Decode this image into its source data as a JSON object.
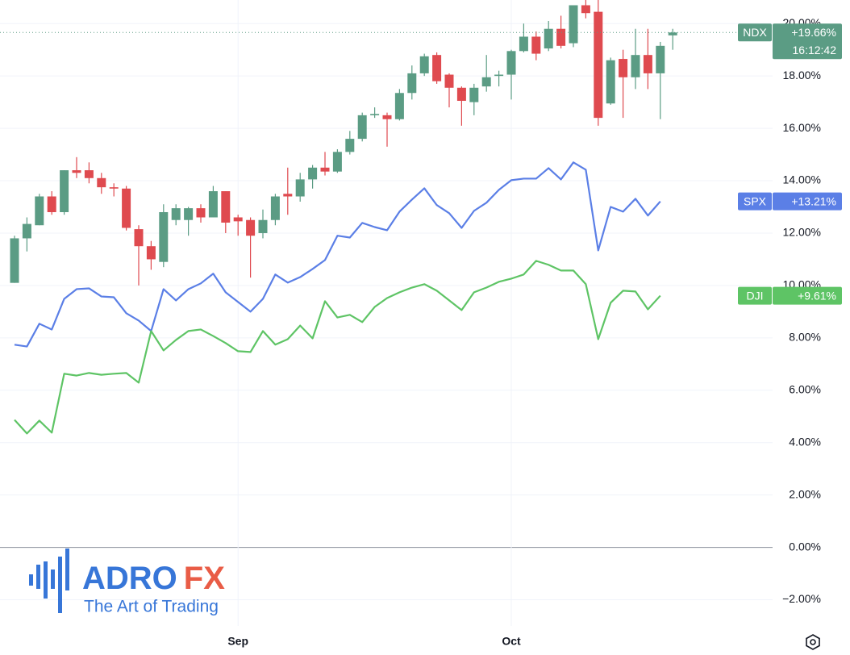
{
  "chart_data": {
    "type": "candlestick",
    "categories": [
      null,
      null,
      null,
      null,
      null,
      null,
      null,
      null,
      null,
      null,
      null,
      null,
      null,
      null,
      null,
      null,
      null,
      null,
      "Sep",
      null,
      null,
      null,
      null,
      null,
      null,
      null,
      null,
      null,
      null,
      null,
      null,
      null,
      null,
      null,
      null,
      null,
      null,
      null,
      null,
      null,
      "Oct",
      null,
      null,
      null,
      null,
      null,
      null,
      null,
      null,
      null,
      null,
      null,
      null,
      null
    ],
    "ylim": [
      -3,
      20.9
    ],
    "yticks": [
      {
        "value": -2,
        "label": "−2.00%"
      },
      {
        "value": 0,
        "label": "0.00%"
      },
      {
        "value": 2,
        "label": "2.00%"
      },
      {
        "value": 4,
        "label": "4.00%"
      },
      {
        "value": 6,
        "label": "6.00%"
      },
      {
        "value": 8,
        "label": "8.00%"
      },
      {
        "value": 10,
        "label": "10.00%"
      },
      {
        "value": 12,
        "label": "12.00%"
      },
      {
        "value": 14,
        "label": "14.00%"
      },
      {
        "value": 16,
        "label": "16.00%"
      },
      {
        "value": 18,
        "label": "18.00%"
      },
      {
        "value": 20,
        "label": "20.00%"
      }
    ],
    "grid": true,
    "series": [
      {
        "name": "NDX",
        "type": "candlestick",
        "color": "#5b9c84",
        "down_color": "#df4a4f",
        "last_label": "+19.66%",
        "countdown": "16:12:42",
        "open": [
          10.1,
          11.8,
          12.3,
          13.4,
          12.8,
          14.4,
          14.4,
          14.1,
          13.75,
          13.7,
          12.15,
          11.5,
          10.9,
          12.5,
          12.5,
          12.95,
          12.6,
          13.6,
          12.6,
          12.5,
          12.0,
          12.5,
          13.5,
          13.4,
          14.05,
          14.5,
          14.35,
          15.1,
          15.6,
          16.5,
          16.5,
          16.35,
          17.35,
          18.1,
          18.8,
          18.05,
          17.55,
          17.0,
          17.6,
          18.0,
          18.05,
          18.95,
          19.5,
          19.05,
          19.8,
          19.25,
          20.7,
          20.45,
          16.95,
          18.65,
          17.95,
          18.8,
          18.1,
          19.55
        ],
        "high": [
          11.9,
          12.6,
          13.5,
          13.6,
          14.4,
          14.9,
          14.7,
          14.3,
          13.9,
          13.8,
          12.3,
          11.7,
          13.1,
          13.1,
          13.0,
          13.1,
          13.8,
          13.6,
          12.7,
          12.6,
          12.9,
          13.5,
          14.5,
          14.3,
          14.6,
          15.1,
          15.2,
          15.9,
          16.6,
          16.8,
          16.6,
          17.5,
          18.4,
          18.85,
          18.9,
          18.1,
          17.6,
          17.7,
          18.8,
          18.2,
          19.0,
          20.0,
          19.7,
          20.1,
          20.3,
          20.7,
          21.0,
          21.0,
          18.7,
          19.0,
          19.8,
          19.8,
          19.3,
          19.8
        ],
        "low": [
          10.1,
          11.3,
          12.3,
          12.7,
          12.7,
          14.1,
          13.9,
          13.5,
          13.4,
          12.1,
          10.0,
          10.6,
          10.7,
          12.3,
          11.9,
          12.4,
          12.6,
          12.0,
          11.9,
          10.3,
          11.8,
          12.3,
          12.7,
          13.2,
          13.7,
          14.2,
          14.3,
          15.0,
          15.5,
          16.4,
          15.3,
          16.3,
          17.1,
          18.0,
          17.7,
          16.8,
          16.1,
          16.5,
          17.4,
          17.6,
          17.1,
          18.9,
          18.6,
          18.95,
          19.05,
          19.1,
          20.2,
          16.1,
          16.9,
          16.4,
          17.5,
          17.5,
          16.35,
          19.0
        ],
        "close": [
          11.8,
          12.35,
          13.4,
          12.8,
          14.4,
          14.3,
          14.1,
          13.75,
          13.7,
          12.2,
          11.5,
          11.0,
          12.8,
          12.95,
          12.95,
          12.6,
          13.6,
          12.4,
          12.45,
          11.9,
          12.5,
          13.4,
          13.4,
          14.05,
          14.5,
          14.35,
          15.1,
          15.6,
          16.5,
          16.55,
          16.35,
          17.35,
          18.1,
          18.75,
          17.8,
          17.55,
          17.05,
          17.55,
          17.95,
          18.05,
          18.95,
          19.5,
          18.85,
          19.8,
          19.15,
          20.7,
          20.4,
          16.4,
          18.6,
          17.95,
          18.8,
          18.1,
          19.15,
          19.66
        ]
      },
      {
        "name": "SPX",
        "type": "line",
        "color": "#5b7fe6",
        "last_label": "+13.21%",
        "values": [
          7.74,
          7.67,
          8.54,
          8.32,
          9.49,
          9.86,
          9.89,
          9.58,
          9.55,
          8.94,
          8.66,
          8.26,
          9.86,
          9.43,
          9.86,
          10.08,
          10.45,
          9.74,
          9.37,
          9.0,
          9.49,
          10.42,
          10.11,
          10.32,
          10.63,
          10.97,
          11.9,
          11.83,
          12.39,
          12.23,
          12.11,
          12.82,
          13.28,
          13.71,
          13.07,
          12.76,
          12.2,
          12.85,
          13.16,
          13.65,
          14.02,
          14.08,
          14.08,
          14.48,
          14.05,
          14.7,
          14.42,
          11.34,
          13.0,
          12.82,
          13.31,
          12.67,
          13.21,
          null
        ]
      },
      {
        "name": "DJI",
        "type": "line",
        "color": "#5ec465",
        "last_label": "+9.61%",
        "values": [
          4.87,
          4.35,
          4.84,
          4.38,
          6.63,
          6.56,
          6.66,
          6.59,
          6.63,
          6.66,
          6.29,
          8.26,
          7.52,
          7.92,
          8.26,
          8.32,
          8.07,
          7.8,
          7.49,
          7.46,
          8.26,
          7.74,
          7.95,
          8.47,
          7.98,
          9.4,
          8.78,
          8.88,
          8.6,
          9.18,
          9.52,
          9.74,
          9.92,
          10.05,
          9.8,
          9.43,
          9.06,
          9.74,
          9.92,
          10.14,
          10.26,
          10.42,
          10.94,
          10.79,
          10.57,
          10.57,
          10.05,
          7.95,
          9.34,
          9.8,
          9.77,
          9.09,
          9.61,
          null
        ]
      }
    ]
  },
  "watermark": {
    "brand": "ADRO",
    "brand_accent": "FX",
    "tagline": "The Art of Trading"
  }
}
